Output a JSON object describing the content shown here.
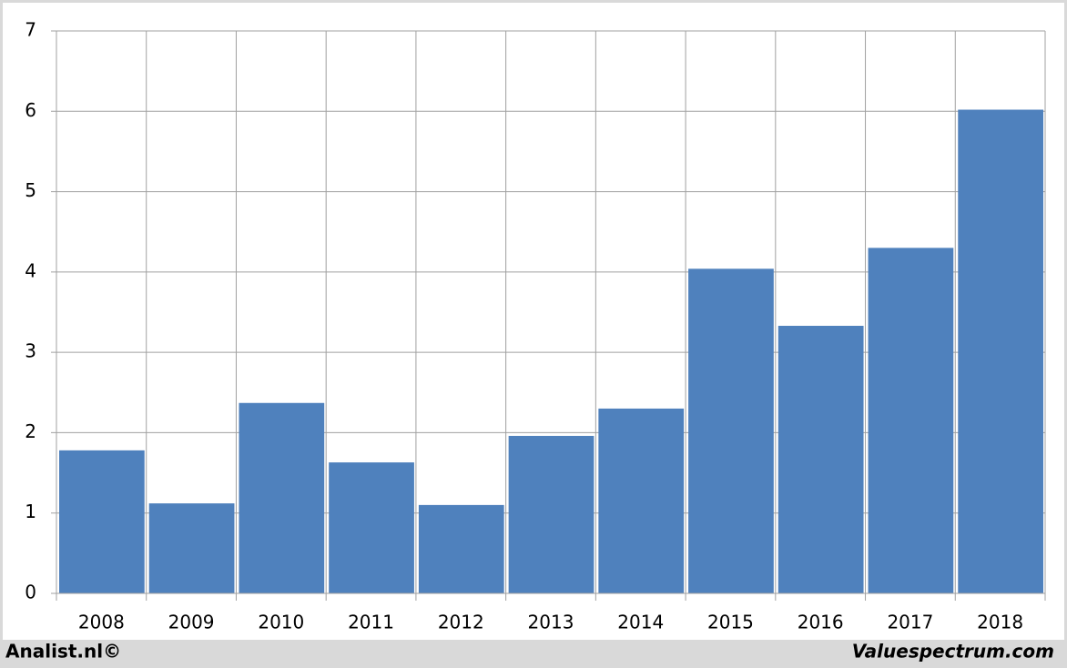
{
  "chart_data": {
    "type": "bar",
    "categories": [
      "2008",
      "2009",
      "2010",
      "2011",
      "2012",
      "2013",
      "2014",
      "2015",
      "2016",
      "2017",
      "2018"
    ],
    "values": [
      1.78,
      1.12,
      2.37,
      1.63,
      1.1,
      1.96,
      2.3,
      4.04,
      3.33,
      4.3,
      6.02
    ],
    "color": "#4f81bd",
    "ylim": [
      0,
      7
    ],
    "yticks": [
      0,
      1,
      2,
      3,
      4,
      5,
      6,
      7
    ],
    "grid": true,
    "footer_left": "Analist.nl©",
    "footer_right": "Valuespectrum.com"
  }
}
